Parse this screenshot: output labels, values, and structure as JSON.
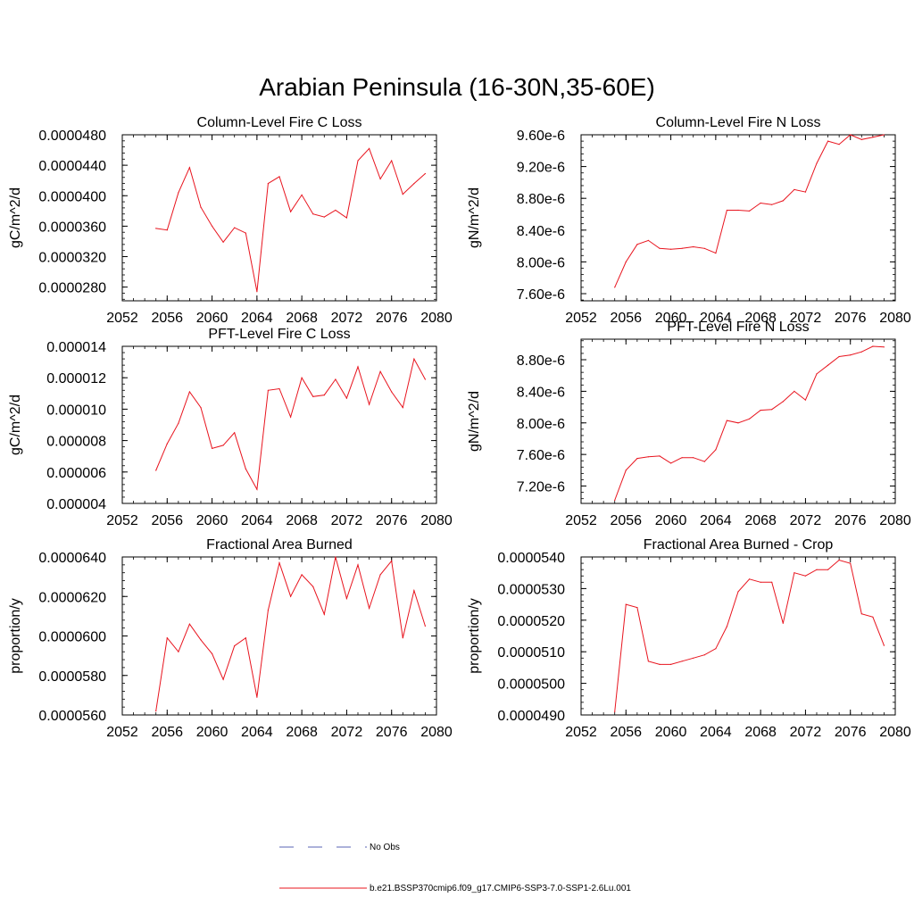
{
  "page_title": "Arabian Peninsula (16-30N,35-60E)",
  "colors": {
    "model_line": "#e8141e",
    "obs_line": "#5a64b4",
    "axis": "#000000"
  },
  "legend": {
    "obs_label": "No Obs",
    "model_label": "b.e21.BSSP370cmip6.f09_g17.CMIP6-SSP3-7.0-SSP1-2.6Lu.001"
  },
  "chart_data": [
    {
      "type": "line",
      "title": "Column-Level Fire C Loss",
      "ylabel": "gC/m^2/d",
      "xlim": [
        2052,
        2080
      ],
      "xticks": [
        2052,
        2056,
        2060,
        2064,
        2068,
        2072,
        2076,
        2080
      ],
      "xtick_labels": [
        "2052",
        "2056",
        "2060",
        "2064",
        "2068",
        "2072",
        "2076",
        "2080"
      ],
      "ylim": [
        2.62e-05,
        4.8e-05
      ],
      "yticks": [
        2.8e-05,
        3.2e-05,
        3.6e-05,
        4e-05,
        4.4e-05,
        4.8e-05
      ],
      "ytick_labels": [
        "0.0000280",
        "0.0000320",
        "0.0000360",
        "0.0000400",
        "0.0000440",
        "0.0000480"
      ],
      "x": [
        2055,
        2056,
        2057,
        2058,
        2059,
        2060,
        2061,
        2062,
        2063,
        2064,
        2065,
        2066,
        2067,
        2068,
        2069,
        2070,
        2071,
        2072,
        2073,
        2074,
        2075,
        2076,
        2077,
        2078,
        2079
      ],
      "values": [
        3.57e-05,
        3.55e-05,
        4.04e-05,
        4.37e-05,
        3.85e-05,
        3.6e-05,
        3.39e-05,
        3.58e-05,
        3.51e-05,
        2.74e-05,
        4.16e-05,
        4.25e-05,
        3.79e-05,
        4.01e-05,
        3.76e-05,
        3.72e-05,
        3.81e-05,
        3.71e-05,
        4.46e-05,
        4.62e-05,
        4.22e-05,
        4.46e-05,
        4.02e-05,
        4.16e-05,
        4.29e-05
      ]
    },
    {
      "type": "line",
      "title": "Column-Level Fire N Loss",
      "ylabel": "gN/m^2/d",
      "xlim": [
        2052,
        2080
      ],
      "xticks": [
        2052,
        2056,
        2060,
        2064,
        2068,
        2072,
        2076,
        2080
      ],
      "xtick_labels": [
        "2052",
        "2056",
        "2060",
        "2064",
        "2068",
        "2072",
        "2076",
        "2080"
      ],
      "ylim": [
        7.51e-06,
        9.6e-06
      ],
      "yticks": [
        7.6e-06,
        8e-06,
        8.4e-06,
        8.8e-06,
        9.2e-06,
        9.6e-06
      ],
      "ytick_labels": [
        "7.60e-6",
        "8.00e-6",
        "8.40e-6",
        "8.80e-6",
        "9.20e-6",
        "9.60e-6"
      ],
      "x": [
        2055,
        2056,
        2057,
        2058,
        2059,
        2060,
        2061,
        2062,
        2063,
        2064,
        2065,
        2066,
        2067,
        2068,
        2069,
        2070,
        2071,
        2072,
        2073,
        2074,
        2075,
        2076,
        2077,
        2078,
        2079
      ],
      "values": [
        7.68e-06,
        8e-06,
        8.22e-06,
        8.27e-06,
        8.17e-06,
        8.16e-06,
        8.17e-06,
        8.19e-06,
        8.17e-06,
        8.11e-06,
        8.65e-06,
        8.65e-06,
        8.64e-06,
        8.74e-06,
        8.72e-06,
        8.77e-06,
        8.91e-06,
        8.88e-06,
        9.24e-06,
        9.52e-06,
        9.48e-06,
        9.6e-06,
        9.54e-06,
        9.57e-06,
        9.6e-06
      ]
    },
    {
      "type": "line",
      "title": "PFT-Level Fire C Loss",
      "ylabel": "gC/m^2/d",
      "xlim": [
        2052,
        2080
      ],
      "xticks": [
        2052,
        2056,
        2060,
        2064,
        2068,
        2072,
        2076,
        2080
      ],
      "xtick_labels": [
        "2052",
        "2056",
        "2060",
        "2064",
        "2068",
        "2072",
        "2076",
        "2080"
      ],
      "ylim": [
        4e-06,
        1.4e-05
      ],
      "yticks": [
        4e-06,
        6e-06,
        8e-06,
        1e-05,
        1.2e-05,
        1.4e-05
      ],
      "ytick_labels": [
        "0.000004",
        "0.000006",
        "0.000008",
        "0.000010",
        "0.000012",
        "0.000014"
      ],
      "x": [
        2055,
        2056,
        2057,
        2058,
        2059,
        2060,
        2061,
        2062,
        2063,
        2064,
        2065,
        2066,
        2067,
        2068,
        2069,
        2070,
        2071,
        2072,
        2073,
        2074,
        2075,
        2076,
        2077,
        2078,
        2079
      ],
      "values": [
        6.1e-06,
        7.8e-06,
        9.1e-06,
        1.11e-05,
        1.01e-05,
        7.5e-06,
        7.7e-06,
        8.5e-06,
        6.2e-06,
        4.9e-06,
        1.12e-05,
        1.13e-05,
        9.5e-06,
        1.2e-05,
        1.08e-05,
        1.09e-05,
        1.19e-05,
        1.07e-05,
        1.27e-05,
        1.03e-05,
        1.24e-05,
        1.11e-05,
        1.01e-05,
        1.32e-05,
        1.19e-05
      ]
    },
    {
      "type": "line",
      "title": "PFT-Level Fire N Loss",
      "ylabel": "gN/m^2/d",
      "xlim": [
        2052,
        2080
      ],
      "xticks": [
        2052,
        2056,
        2060,
        2064,
        2068,
        2072,
        2076,
        2080
      ],
      "xtick_labels": [
        "2052",
        "2056",
        "2060",
        "2064",
        "2068",
        "2072",
        "2076",
        "2080"
      ],
      "ylim": [
        6.98e-06,
        9.06e-06
      ],
      "yticks": [
        7.2e-06,
        7.6e-06,
        8e-06,
        8.4e-06,
        8.8e-06
      ],
      "ytick_labels": [
        "7.20e-6",
        "7.60e-6",
        "8.00e-6",
        "8.40e-6",
        "8.80e-6"
      ],
      "x": [
        2055,
        2056,
        2057,
        2058,
        2059,
        2060,
        2061,
        2062,
        2063,
        2064,
        2065,
        2066,
        2067,
        2068,
        2069,
        2070,
        2071,
        2072,
        2073,
        2074,
        2075,
        2076,
        2077,
        2078,
        2079
      ],
      "values": [
        7.02e-06,
        7.4e-06,
        7.55e-06,
        7.57e-06,
        7.58e-06,
        7.49e-06,
        7.56e-06,
        7.56e-06,
        7.51e-06,
        7.66e-06,
        8.03e-06,
        8e-06,
        8.05e-06,
        8.16e-06,
        8.17e-06,
        8.27e-06,
        8.4e-06,
        8.29e-06,
        8.62e-06,
        8.73e-06,
        8.84e-06,
        8.86e-06,
        8.9e-06,
        8.97e-06,
        8.96e-06
      ]
    },
    {
      "type": "line",
      "title": "Fractional Area Burned",
      "ylabel": "proportion/y",
      "xlim": [
        2052,
        2080
      ],
      "xticks": [
        2052,
        2056,
        2060,
        2064,
        2068,
        2072,
        2076,
        2080
      ],
      "xtick_labels": [
        "2052",
        "2056",
        "2060",
        "2064",
        "2068",
        "2072",
        "2076",
        "2080"
      ],
      "ylim": [
        5.6e-05,
        6.4e-05
      ],
      "yticks": [
        5.6e-05,
        5.8e-05,
        6e-05,
        6.2e-05,
        6.4e-05
      ],
      "ytick_labels": [
        "0.0000560",
        "0.0000580",
        "0.0000600",
        "0.0000620",
        "0.0000640"
      ],
      "x": [
        2055,
        2056,
        2057,
        2058,
        2059,
        2060,
        2061,
        2062,
        2063,
        2064,
        2065,
        2066,
        2067,
        2068,
        2069,
        2070,
        2071,
        2072,
        2073,
        2074,
        2075,
        2076,
        2077,
        2078,
        2079
      ],
      "values": [
        5.62e-05,
        5.99e-05,
        5.92e-05,
        6.06e-05,
        5.98e-05,
        5.91e-05,
        5.78e-05,
        5.95e-05,
        5.99e-05,
        5.69e-05,
        6.13e-05,
        6.37e-05,
        6.2e-05,
        6.31e-05,
        6.25e-05,
        6.11e-05,
        6.4e-05,
        6.19e-05,
        6.36e-05,
        6.14e-05,
        6.31e-05,
        6.38e-05,
        5.99e-05,
        6.23e-05,
        6.05e-05
      ]
    },
    {
      "type": "line",
      "title": "Fractional Area Burned - Crop",
      "ylabel": "proportion/y",
      "xlim": [
        2052,
        2080
      ],
      "xticks": [
        2052,
        2056,
        2060,
        2064,
        2068,
        2072,
        2076,
        2080
      ],
      "xtick_labels": [
        "2052",
        "2056",
        "2060",
        "2064",
        "2068",
        "2072",
        "2076",
        "2080"
      ],
      "ylim": [
        4.9e-05,
        5.4e-05
      ],
      "yticks": [
        4.9e-05,
        5e-05,
        5.1e-05,
        5.2e-05,
        5.3e-05,
        5.4e-05
      ],
      "ytick_labels": [
        "0.0000490",
        "0.0000500",
        "0.0000510",
        "0.0000520",
        "0.0000530",
        "0.0000540"
      ],
      "x": [
        2055,
        2056,
        2057,
        2058,
        2059,
        2060,
        2061,
        2062,
        2063,
        2064,
        2065,
        2066,
        2067,
        2068,
        2069,
        2070,
        2071,
        2072,
        2073,
        2074,
        2075,
        2076,
        2077,
        2078,
        2079
      ],
      "values": [
        4.91e-05,
        5.25e-05,
        5.24e-05,
        5.07e-05,
        5.06e-05,
        5.06e-05,
        5.07e-05,
        5.08e-05,
        5.09e-05,
        5.11e-05,
        5.18e-05,
        5.29e-05,
        5.33e-05,
        5.32e-05,
        5.32e-05,
        5.19e-05,
        5.35e-05,
        5.34e-05,
        5.36e-05,
        5.36e-05,
        5.39e-05,
        5.38e-05,
        5.22e-05,
        5.21e-05,
        5.12e-05
      ]
    }
  ]
}
